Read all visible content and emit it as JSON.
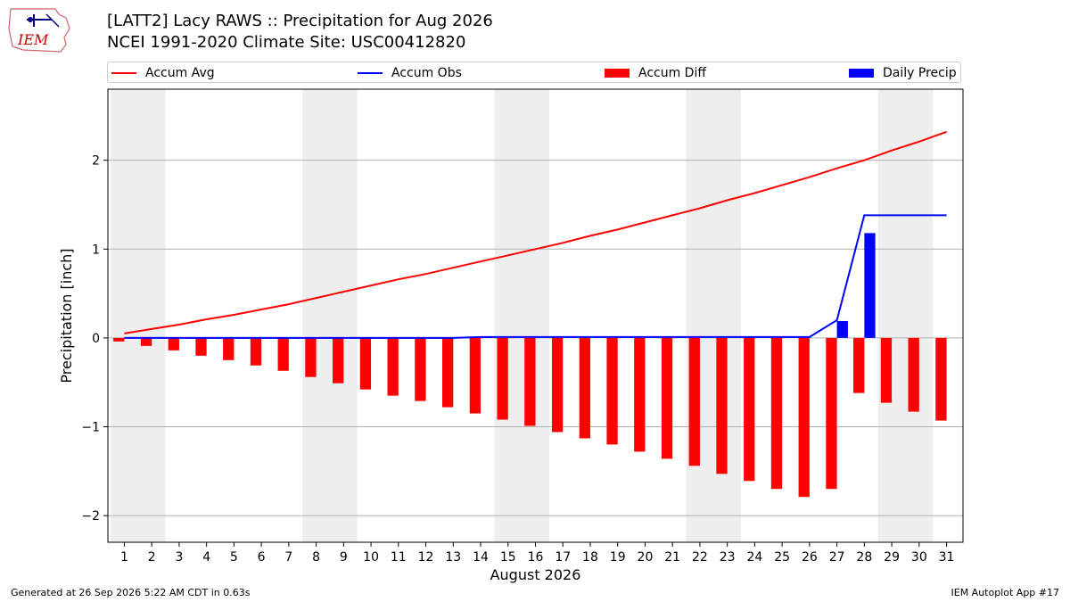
{
  "header": {
    "title": "[LATT2] Lacy RAWS :: Precipitation for Aug 2026",
    "subtitle": "NCEI 1991-2020 Climate Site: USC00412820"
  },
  "logo": {
    "text": "IEM"
  },
  "footer": {
    "left": "Generated at 26 Sep 2026 5:22 AM CDT in 0.63s",
    "right": "IEM Autoplot App #17"
  },
  "colors": {
    "avg": "#ff0000",
    "obs": "#0000ff",
    "diff": "#ff0000",
    "precip": "#0000ff",
    "weekend": "#eeeeee",
    "grid": "#b0b0b0"
  },
  "chart_data": {
    "type": "bar",
    "xlabel": "August 2026",
    "ylabel": "Precipitation [inch]",
    "ylim": [
      -2.3,
      2.8
    ],
    "yticks": [
      -2,
      -1,
      0,
      1,
      2
    ],
    "ytick_labels": [
      "−2",
      "−1",
      "0",
      "1",
      "2"
    ],
    "x": [
      1,
      2,
      3,
      4,
      5,
      6,
      7,
      8,
      9,
      10,
      11,
      12,
      13,
      14,
      15,
      16,
      17,
      18,
      19,
      20,
      21,
      22,
      23,
      24,
      25,
      26,
      27,
      28,
      29,
      30,
      31
    ],
    "weekend_spans": [
      [
        1,
        2
      ],
      [
        8,
        9
      ],
      [
        15,
        16
      ],
      [
        22,
        23
      ],
      [
        29,
        30
      ]
    ],
    "grid": true,
    "legend": {
      "position": "top",
      "entries": [
        "Accum Avg",
        "Accum Obs",
        "Accum Diff",
        "Daily Precip"
      ]
    },
    "series": [
      {
        "name": "Accum Avg",
        "kind": "line",
        "values": [
          0.05,
          0.1,
          0.15,
          0.21,
          0.26,
          0.32,
          0.38,
          0.45,
          0.52,
          0.59,
          0.66,
          0.72,
          0.79,
          0.86,
          0.93,
          1.0,
          1.07,
          1.15,
          1.22,
          1.3,
          1.38,
          1.46,
          1.55,
          1.63,
          1.72,
          1.81,
          1.91,
          2.0,
          2.11,
          2.21,
          2.32
        ]
      },
      {
        "name": "Accum Obs",
        "kind": "line",
        "values": [
          0.0,
          0.0,
          0.0,
          0.0,
          0.0,
          0.0,
          0.0,
          0.0,
          0.0,
          0.0,
          0.0,
          0.0,
          0.0,
          0.01,
          0.01,
          0.01,
          0.01,
          0.01,
          0.01,
          0.01,
          0.01,
          0.01,
          0.01,
          0.01,
          0.01,
          0.01,
          0.2,
          1.38,
          1.38,
          1.38,
          1.38
        ]
      },
      {
        "name": "Accum Diff",
        "kind": "bar",
        "values": [
          -0.04,
          -0.09,
          -0.14,
          -0.2,
          -0.25,
          -0.31,
          -0.37,
          -0.44,
          -0.51,
          -0.58,
          -0.65,
          -0.71,
          -0.78,
          -0.85,
          -0.92,
          -0.99,
          -1.06,
          -1.13,
          -1.2,
          -1.28,
          -1.36,
          -1.44,
          -1.53,
          -1.61,
          -1.7,
          -1.79,
          -1.7,
          -0.62,
          -0.73,
          -0.83,
          -0.93
        ]
      },
      {
        "name": "Daily Precip",
        "kind": "bar",
        "values": [
          0,
          0,
          0,
          0,
          0,
          0,
          0,
          0,
          0,
          0,
          0,
          0,
          0,
          0.01,
          0,
          0,
          0,
          0,
          0,
          0,
          0,
          0,
          0,
          0,
          0,
          0,
          0.19,
          1.18,
          0,
          0,
          0
        ]
      }
    ]
  }
}
